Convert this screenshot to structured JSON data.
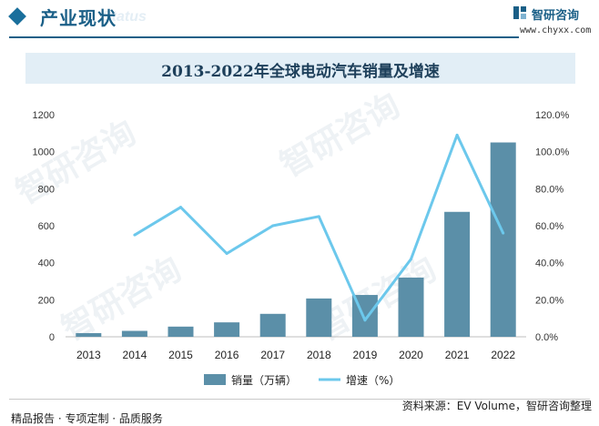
{
  "header": {
    "section_title": "产业现状",
    "section_subtitle": "Status",
    "logo_name": "智研咨询",
    "logo_url": "www.chyxx.com"
  },
  "colors": {
    "accent": "#1a5f87",
    "bar": "#5b8fa8",
    "line": "#6cc8ec",
    "title_band": "#e2eef6"
  },
  "watermark_text": "智研咨询",
  "chart_data": {
    "type": "bar",
    "title": "2013-2022年全球电动汽车销量及增速",
    "categories": [
      "2013",
      "2014",
      "2015",
      "2016",
      "2017",
      "2018",
      "2019",
      "2020",
      "2021",
      "2022"
    ],
    "series": [
      {
        "name": "销量（万辆）",
        "type": "bar",
        "axis": "left",
        "values": [
          20,
          32,
          55,
          78,
          124,
          207,
          226,
          320,
          675,
          1050
        ]
      },
      {
        "name": "增速（%）",
        "type": "line",
        "axis": "right",
        "values": [
          null,
          55.0,
          70.0,
          45.0,
          60.0,
          65.0,
          9.0,
          42.0,
          109.0,
          56.0
        ]
      }
    ],
    "y_left": {
      "min": 0,
      "max": 1200,
      "ticks": [
        "0",
        "200",
        "400",
        "600",
        "800",
        "1000",
        "1200"
      ]
    },
    "y_right": {
      "min": 0,
      "max": 120,
      "ticks": [
        "0.0%",
        "20.0%",
        "40.0%",
        "60.0%",
        "80.0%",
        "100.0%",
        "120.0%"
      ]
    },
    "grid": false,
    "legend_position": "bottom"
  },
  "footer": {
    "left": "精品报告 · 专项定制 · 品质服务",
    "source": "资料来源：EV Volume，智研咨询整理"
  }
}
